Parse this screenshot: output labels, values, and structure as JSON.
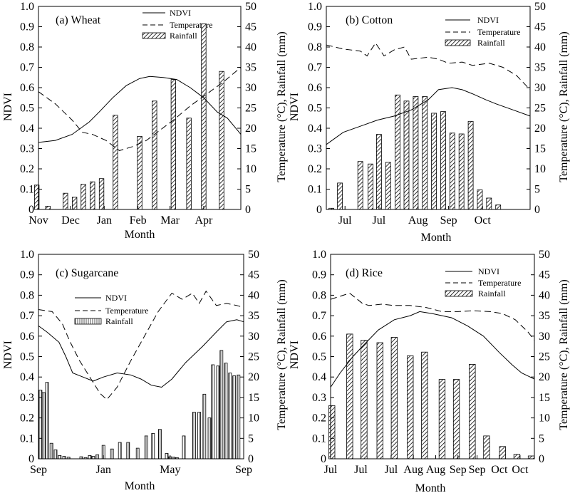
{
  "figure": {
    "x_axis_title": "Month",
    "left_axis_title": "NDVI",
    "right_axis_title": "Temperature (°C), Rainfall (mm)"
  },
  "chart_data": [
    {
      "type": "line",
      "panel_id": "wheat",
      "title": "(a) Wheat",
      "xlabel": "Month",
      "ylabel": "NDVI",
      "y2label": "Temperature (°C), Rainfall (mm)",
      "x_ticks": [
        "Nov",
        "Dec",
        "Jan",
        "Feb",
        "Mar",
        "Apr"
      ],
      "ylim": [
        0,
        1.0
      ],
      "y2lim": [
        0,
        50
      ],
      "legend_position": "top-right",
      "legend": [
        "NDVI",
        "Temperature",
        "Rainfall"
      ],
      "ndvi": [
        [
          0,
          0.33
        ],
        [
          0.5,
          0.34
        ],
        [
          1,
          0.37
        ],
        [
          1.5,
          0.43
        ],
        [
          1.8,
          0.48
        ],
        [
          2.2,
          0.55
        ],
        [
          2.6,
          0.61
        ],
        [
          3,
          0.645
        ],
        [
          3.3,
          0.655
        ],
        [
          3.7,
          0.65
        ],
        [
          4.1,
          0.64
        ],
        [
          4.5,
          0.6
        ],
        [
          4.9,
          0.55
        ],
        [
          5.3,
          0.48
        ],
        [
          5.6,
          0.45
        ],
        [
          5.9,
          0.39
        ],
        [
          6.0,
          0.37
        ]
      ],
      "temperature": [
        [
          0,
          29
        ],
        [
          0.5,
          26
        ],
        [
          1,
          22
        ],
        [
          1.3,
          19
        ],
        [
          1.6,
          18.5
        ],
        [
          2,
          17
        ],
        [
          2.4,
          14.5
        ],
        [
          2.8,
          15.5
        ],
        [
          3.2,
          17
        ],
        [
          3.6,
          19.5
        ],
        [
          4,
          22
        ],
        [
          4.5,
          25.5
        ],
        [
          5,
          28.5
        ],
        [
          5.5,
          31.5
        ],
        [
          6,
          35
        ]
      ],
      "rainfall": [
        [
          -0.05,
          6
        ],
        [
          0.28,
          0.8
        ],
        [
          0.8,
          4
        ],
        [
          1.07,
          3
        ],
        [
          1.33,
          6.2
        ],
        [
          1.6,
          6.8
        ],
        [
          1.87,
          7.6
        ],
        [
          2.28,
          23.2
        ],
        [
          3.0,
          18
        ],
        [
          3.44,
          26.7
        ],
        [
          4.0,
          32
        ],
        [
          4.46,
          22.5
        ],
        [
          4.9,
          45.7
        ],
        [
          5.43,
          34
        ]
      ]
    },
    {
      "type": "line",
      "panel_id": "cotton",
      "title": "(b) Cotton",
      "xlabel": "Month",
      "ylabel": "NDVI",
      "y2label": "Temperature (°C), Rainfall (mm)",
      "x_ticks": [
        "Jul",
        "Jul",
        "Aug",
        "Sep",
        "Oct"
      ],
      "ylim": [
        0,
        1.0
      ],
      "y2lim": [
        0,
        50
      ],
      "legend_position": "top-right",
      "legend": [
        "NDVI",
        "Temperature",
        "Rainfall"
      ],
      "ndvi": [
        [
          0,
          0.32
        ],
        [
          0.5,
          0.38
        ],
        [
          1,
          0.41
        ],
        [
          1.5,
          0.44
        ],
        [
          2,
          0.46
        ],
        [
          2.5,
          0.49
        ],
        [
          3,
          0.54
        ],
        [
          3.3,
          0.59
        ],
        [
          3.7,
          0.6
        ],
        [
          4,
          0.59
        ],
        [
          4.3,
          0.57
        ],
        [
          4.7,
          0.54
        ],
        [
          5,
          0.52
        ],
        [
          5.5,
          0.49
        ],
        [
          6.0,
          0.46
        ]
      ],
      "temperature": [
        [
          0,
          40.5
        ],
        [
          0.5,
          39.5
        ],
        [
          1,
          39
        ],
        [
          1.2,
          37.8
        ],
        [
          1.45,
          41
        ],
        [
          1.7,
          37.8
        ],
        [
          2,
          39.3
        ],
        [
          2.3,
          40
        ],
        [
          2.5,
          37
        ],
        [
          3,
          37.5
        ],
        [
          3.3,
          37
        ],
        [
          3.6,
          36
        ],
        [
          4,
          36.3
        ],
        [
          4.3,
          35.5
        ],
        [
          4.8,
          36
        ],
        [
          5.2,
          35
        ],
        [
          5.6,
          33
        ],
        [
          6.0,
          29.5
        ]
      ],
      "rainfall": [
        [
          0.15,
          0.3
        ],
        [
          0.4,
          6.5
        ],
        [
          1.0,
          11.8
        ],
        [
          1.3,
          11.2
        ],
        [
          1.55,
          18.5
        ],
        [
          1.82,
          11.6
        ],
        [
          2.1,
          28.2
        ],
        [
          2.36,
          26.7
        ],
        [
          2.63,
          27.8
        ],
        [
          2.9,
          27.8
        ],
        [
          3.17,
          23.7
        ],
        [
          3.44,
          24.1
        ],
        [
          3.71,
          18.8
        ],
        [
          3.98,
          18.6
        ],
        [
          4.25,
          21.7
        ],
        [
          4.52,
          4.8
        ],
        [
          4.79,
          2.8
        ],
        [
          5.06,
          1.1
        ]
      ]
    },
    {
      "type": "line",
      "panel_id": "sugarcane",
      "title": "(c) Sugarcane",
      "xlabel": "Month",
      "ylabel": "NDVI",
      "y2label": "Temperature (°C), Rainfall (mm)",
      "x_ticks": [
        "Sep",
        "Jan",
        "May",
        "Sep"
      ],
      "ylim": [
        0,
        1.0
      ],
      "y2lim": [
        0,
        50
      ],
      "legend_position": "top-center",
      "legend": [
        "NDVI",
        "Temperature",
        "Rainfall"
      ],
      "ndvi": [
        [
          0,
          0.65
        ],
        [
          0.25,
          0.62
        ],
        [
          0.6,
          0.57
        ],
        [
          0.8,
          0.5
        ],
        [
          1,
          0.42
        ],
        [
          1.3,
          0.4
        ],
        [
          1.6,
          0.38
        ],
        [
          1.9,
          0.4
        ],
        [
          2.3,
          0.42
        ],
        [
          2.7,
          0.41
        ],
        [
          3,
          0.39
        ],
        [
          3.3,
          0.36
        ],
        [
          3.6,
          0.35
        ],
        [
          3.9,
          0.39
        ],
        [
          4.3,
          0.47
        ],
        [
          4.8,
          0.55
        ],
        [
          5.2,
          0.62
        ],
        [
          5.5,
          0.67
        ],
        [
          5.8,
          0.68
        ],
        [
          6.0,
          0.67
        ]
      ],
      "temperature": [
        [
          0,
          36.5
        ],
        [
          0.4,
          36
        ],
        [
          0.7,
          33
        ],
        [
          0.9,
          29
        ],
        [
          1.2,
          24
        ],
        [
          1.5,
          20
        ],
        [
          1.8,
          16
        ],
        [
          2,
          14.5
        ],
        [
          2.3,
          17.5
        ],
        [
          2.7,
          24
        ],
        [
          3.1,
          30
        ],
        [
          3.5,
          36
        ],
        [
          3.9,
          40.5
        ],
        [
          4.2,
          39
        ],
        [
          4.5,
          40.5
        ],
        [
          4.7,
          38
        ],
        [
          4.9,
          41
        ],
        [
          5.2,
          37.5
        ],
        [
          5.5,
          38
        ],
        [
          5.8,
          37.5
        ],
        [
          6.0,
          37
        ]
      ],
      "rainfall": [
        [
          0.06,
          16.8
        ],
        [
          0.15,
          16.2
        ],
        [
          0.25,
          18.7
        ],
        [
          0.38,
          3.8
        ],
        [
          0.5,
          2.2
        ],
        [
          0.62,
          0.8
        ],
        [
          0.75,
          0.6
        ],
        [
          0.88,
          0.4
        ],
        [
          1.25,
          0.5
        ],
        [
          1.38,
          0.3
        ],
        [
          1.5,
          0.8
        ],
        [
          1.6,
          0.6
        ],
        [
          1.72,
          1
        ],
        [
          1.9,
          3.3
        ],
        [
          2.15,
          2.4
        ],
        [
          2.38,
          4
        ],
        [
          2.62,
          4
        ],
        [
          2.9,
          2.6
        ],
        [
          3.15,
          5.6
        ],
        [
          3.35,
          6.2
        ],
        [
          3.55,
          7.2
        ],
        [
          3.75,
          1.3
        ],
        [
          3.85,
          0.5
        ],
        [
          3.95,
          0.4
        ],
        [
          4.05,
          0.3
        ],
        [
          4.25,
          5.6
        ],
        [
          4.55,
          11.4
        ],
        [
          4.7,
          11.4
        ],
        [
          4.85,
          15.8
        ],
        [
          5.0,
          10
        ],
        [
          5.1,
          23
        ],
        [
          5.25,
          22.7
        ],
        [
          5.35,
          26.5
        ],
        [
          5.48,
          23.4
        ],
        [
          5.6,
          21
        ],
        [
          5.72,
          20.3
        ],
        [
          5.85,
          20.5
        ]
      ]
    },
    {
      "type": "line",
      "panel_id": "rice",
      "title": "(d) Rice",
      "xlabel": "Month",
      "ylabel": "NDVI",
      "y2label": "Temperature (°C), Rainfall (mm)",
      "x_ticks": [
        "Jul",
        "Jul",
        "Jul",
        "Aug",
        "Aug",
        "Sep",
        "Sep",
        "Oct",
        "Oct"
      ],
      "ylim": [
        0,
        1.0
      ],
      "y2lim": [
        0,
        50
      ],
      "legend_position": "top-center",
      "legend": [
        "NDVI",
        "Temperature",
        "Rainfall"
      ],
      "ndvi": [
        [
          0,
          0.35
        ],
        [
          0.3,
          0.42
        ],
        [
          0.7,
          0.5
        ],
        [
          1,
          0.55
        ],
        [
          1.5,
          0.63
        ],
        [
          2,
          0.68
        ],
        [
          2.5,
          0.7
        ],
        [
          2.8,
          0.72
        ],
        [
          3.2,
          0.71
        ],
        [
          3.8,
          0.69
        ],
        [
          4.3,
          0.65
        ],
        [
          4.8,
          0.6
        ],
        [
          5.3,
          0.52
        ],
        [
          5.7,
          0.46
        ],
        [
          6.0,
          0.42
        ],
        [
          6.4,
          0.39
        ]
      ],
      "temperature": [
        [
          0,
          39
        ],
        [
          0.4,
          40
        ],
        [
          0.6,
          40.5
        ],
        [
          1.0,
          38
        ],
        [
          1.2,
          37.5
        ],
        [
          1.6,
          37.8
        ],
        [
          2,
          37.5
        ],
        [
          2.5,
          37.5
        ],
        [
          3,
          37
        ],
        [
          3.5,
          36
        ],
        [
          4,
          36
        ],
        [
          4.5,
          36.2
        ],
        [
          5,
          36
        ],
        [
          5.4,
          35.5
        ],
        [
          5.8,
          34
        ],
        [
          6.2,
          31
        ],
        [
          6.4,
          29
        ]
      ],
      "rainfall": [
        [
          0.04,
          13
        ],
        [
          0.6,
          30.5
        ],
        [
          1.05,
          29
        ],
        [
          1.55,
          28.4
        ],
        [
          2.0,
          29.7
        ],
        [
          2.5,
          25.2
        ],
        [
          2.95,
          26.1
        ],
        [
          3.5,
          19.4
        ],
        [
          3.95,
          19.4
        ],
        [
          4.45,
          23.1
        ],
        [
          4.9,
          5.6
        ],
        [
          5.4,
          3
        ],
        [
          5.85,
          1.1
        ],
        [
          6.3,
          0.7
        ]
      ]
    }
  ]
}
